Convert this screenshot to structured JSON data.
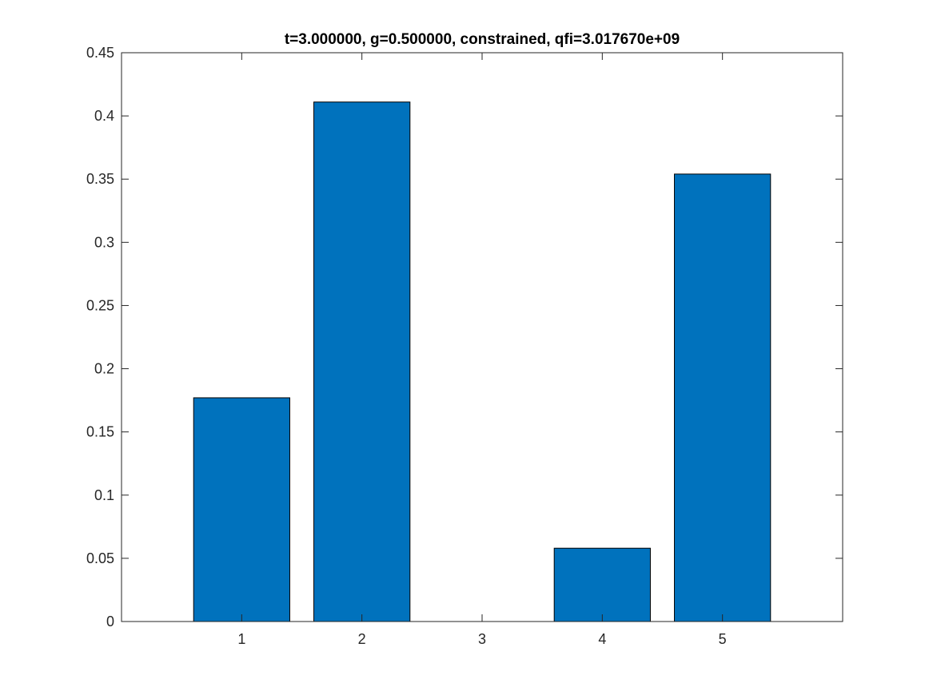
{
  "chart_data": {
    "type": "bar",
    "title": "t=3.000000, g=0.500000, constrained, qfi=3.017670e+09",
    "xlabel": "",
    "ylabel": "",
    "categories": [
      "1",
      "2",
      "3",
      "4",
      "5"
    ],
    "values": [
      0.177,
      0.411,
      0.0,
      0.058,
      0.354
    ],
    "xlim": [
      0,
      6
    ],
    "ylim": [
      0,
      0.45
    ],
    "yticks": [
      "0",
      "0.05",
      "0.1",
      "0.15",
      "0.2",
      "0.25",
      "0.3",
      "0.35",
      "0.4",
      "0.45"
    ],
    "grid": false,
    "legend": "none",
    "bar_color": "#0072BD",
    "edge_color": "#000000"
  }
}
